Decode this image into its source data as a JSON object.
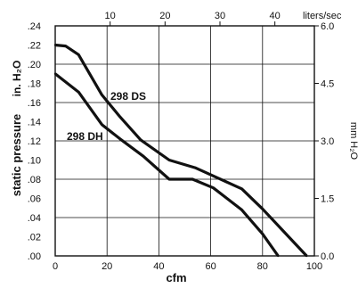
{
  "chart_data": {
    "type": "line",
    "title": "",
    "xlabel": "cfm",
    "ylabel": "static pressure",
    "ylabel_units": "in. H₂O",
    "y2label": "mm H₂O",
    "x2label": "liters/sec",
    "xlim": [
      0,
      100
    ],
    "ylim": [
      0,
      0.24
    ],
    "x2lim": [
      0,
      47.19
    ],
    "y2lim": [
      0,
      6.0
    ],
    "grid": true,
    "x_ticks": [
      "0",
      "20",
      "40",
      "60",
      "80",
      "100"
    ],
    "y_ticks": [
      ".00",
      ".02",
      ".04",
      ".06",
      ".08",
      ".10",
      ".12",
      ".14",
      ".16",
      ".18",
      ".20",
      ".22",
      ".24"
    ],
    "x2_ticks": [
      "10",
      "20",
      "30",
      "40"
    ],
    "y2_ticks": [
      "0.0",
      "1.5",
      "3.0",
      "4.5",
      "6.0"
    ],
    "series": [
      {
        "name": "298 DS",
        "x": [
          0,
          4,
          9,
          18,
          25,
          33,
          44,
          54,
          63,
          72,
          80,
          88,
          97
        ],
        "y": [
          0.22,
          0.219,
          0.21,
          0.168,
          0.145,
          0.121,
          0.1,
          0.092,
          0.081,
          0.07,
          0.049,
          0.026,
          0.0
        ]
      },
      {
        "name": "298 DH",
        "x": [
          0,
          9,
          18,
          25,
          34,
          44,
          53,
          61,
          72,
          80,
          86
        ],
        "y": [
          0.19,
          0.171,
          0.137,
          0.122,
          0.104,
          0.08,
          0.08,
          0.071,
          0.048,
          0.023,
          0.0
        ]
      }
    ]
  }
}
